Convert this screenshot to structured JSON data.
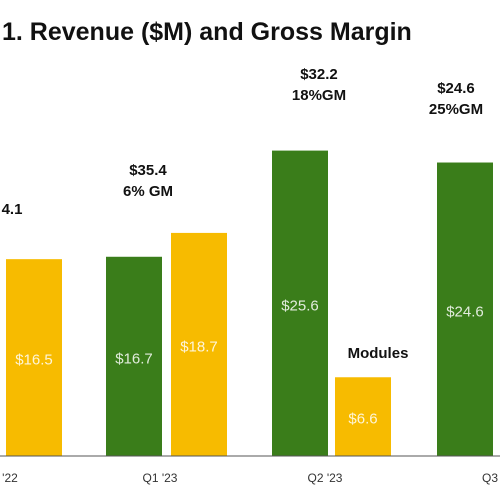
{
  "chart_data": {
    "type": "bar",
    "title": "1. Revenue ($M) and Gross Margin",
    "colors": {
      "green": "#3a7d1a",
      "yellow": "#f7bb00",
      "text": "#111111",
      "axis": "#555555"
    },
    "x_tick_labels": [
      "'22",
      "Q1 '23",
      "Q2 '23",
      "Q3"
    ],
    "ylim": [
      0,
      45
    ],
    "bars": [
      {
        "series": "yellow",
        "value": 16.5,
        "label": "$16.5"
      },
      {
        "series": "green",
        "value": 16.7,
        "label": "$16.7"
      },
      {
        "series": "yellow",
        "value": 18.7,
        "label": "$18.7"
      },
      {
        "series": "green",
        "value": 25.6,
        "label": "$25.6"
      },
      {
        "series": "yellow",
        "value": 6.6,
        "label": "$6.6"
      },
      {
        "series": "green",
        "value": 24.6,
        "label": "$24.6"
      }
    ],
    "annotations": [
      {
        "lines": [
          "4.1"
        ]
      },
      {
        "lines": [
          "$35.4",
          "6% GM"
        ]
      },
      {
        "lines": [
          "$32.2",
          "18%GM"
        ]
      },
      {
        "lines": [
          "Modules"
        ]
      },
      {
        "lines": [
          "$24.6",
          "25%GM"
        ]
      }
    ]
  }
}
